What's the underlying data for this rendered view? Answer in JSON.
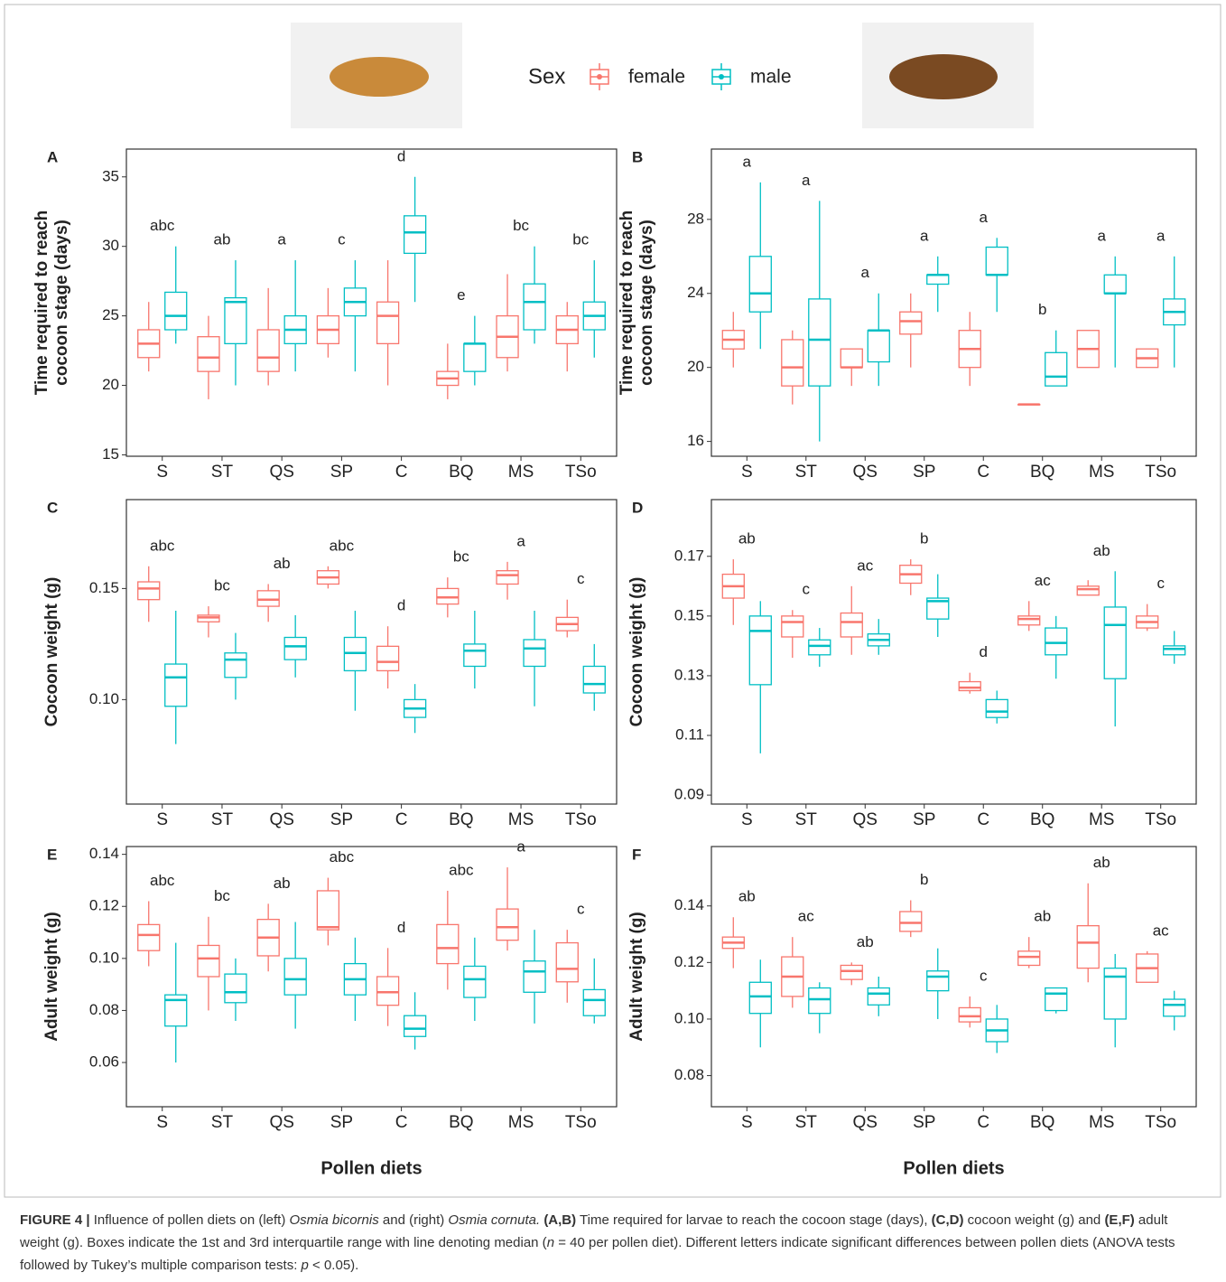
{
  "legend_title": "Sex",
  "chart_data": [
    {
      "type": "box",
      "panel": "A",
      "ylabel": [
        "Time required to reach",
        "cocoon stage (days)"
      ],
      "categories": [
        "S",
        "ST",
        "QS",
        "SP",
        "C",
        "BQ",
        "MS",
        "TSo"
      ],
      "ylim": [
        14.9,
        37.0
      ],
      "yticks": [
        15,
        20,
        25,
        30,
        35
      ],
      "series": [
        {
          "name": "female",
          "color": "#F8766D",
          "values": [
            [
              21,
              22,
              23,
              24,
              26
            ],
            [
              19,
              21,
              22,
              23.5,
              25
            ],
            [
              20,
              21,
              22,
              24,
              27
            ],
            [
              22,
              23,
              24,
              25,
              27
            ],
            [
              20,
              23,
              25,
              26,
              29
            ],
            [
              19,
              20,
              20.5,
              21,
              23
            ],
            [
              21,
              22,
              23.5,
              25,
              28
            ],
            [
              21,
              23,
              24,
              25,
              26
            ]
          ]
        },
        {
          "name": "male",
          "color": "#00BFC4",
          "values": [
            [
              23,
              24,
              25,
              26.7,
              30
            ],
            [
              20,
              23,
              26,
              26.3,
              29
            ],
            [
              21,
              23,
              24,
              25,
              29
            ],
            [
              21,
              25,
              26,
              27,
              29
            ],
            [
              26,
              29.5,
              31,
              32.2,
              35
            ],
            [
              20,
              21,
              23,
              23,
              25
            ],
            [
              23,
              24,
              26,
              27.3,
              30
            ],
            [
              22,
              24,
              25,
              26,
              29
            ]
          ]
        }
      ],
      "letters": [
        "abc",
        "ab",
        "a",
        "c",
        "d",
        "e",
        "bc",
        "bc"
      ]
    },
    {
      "type": "box",
      "panel": "B",
      "ylabel": [
        "Time required to reach",
        "cocoon stage (days)"
      ],
      "categories": [
        "S",
        "ST",
        "QS",
        "SP",
        "C",
        "BQ",
        "MS",
        "TSo"
      ],
      "ylim": [
        15.2,
        31.8
      ],
      "yticks": [
        16,
        20,
        24,
        28
      ],
      "series": [
        {
          "name": "female",
          "color": "#F8766D",
          "values": [
            [
              20,
              21,
              21.5,
              22,
              23
            ],
            [
              18,
              19,
              20,
              21.5,
              22
            ],
            [
              19,
              20,
              20,
              21,
              21
            ],
            [
              20,
              21.8,
              22.5,
              23,
              24
            ],
            [
              19,
              20,
              21,
              22,
              23
            ],
            [
              18,
              18,
              18,
              18,
              18
            ],
            [
              20,
              20,
              21,
              22,
              22
            ],
            [
              20,
              20,
              20.5,
              21,
              21
            ]
          ]
        },
        {
          "name": "male",
          "color": "#00BFC4",
          "values": [
            [
              21,
              23,
              24,
              26,
              30
            ],
            [
              16,
              19,
              21.5,
              23.7,
              29
            ],
            [
              19,
              20.3,
              22,
              22,
              24
            ],
            [
              23,
              24.5,
              25,
              25,
              26
            ],
            [
              23,
              25,
              25,
              26.5,
              27
            ],
            [
              19,
              19,
              19.5,
              20.8,
              22
            ],
            [
              20,
              24,
              24,
              25,
              26
            ],
            [
              20,
              22.3,
              23,
              23.7,
              26
            ]
          ]
        }
      ],
      "letters": [
        "a",
        "a",
        "a",
        "a",
        "a",
        "b",
        "a",
        "a"
      ]
    },
    {
      "type": "box",
      "panel": "C",
      "ylabel": [
        "Cocoon weight (g)"
      ],
      "categories": [
        "S",
        "ST",
        "QS",
        "SP",
        "C",
        "BQ",
        "MS",
        "TSo"
      ],
      "ylim": [
        0.053,
        0.19
      ],
      "yticks": [
        {
          "value": 0.1,
          "label": "0.10"
        },
        0.15
      ],
      "series": [
        {
          "name": "female",
          "color": "#F8766D",
          "values": [
            [
              0.135,
              0.145,
              0.15,
              0.153,
              0.16
            ],
            [
              0.128,
              0.135,
              0.137,
              0.138,
              0.142
            ],
            [
              0.135,
              0.142,
              0.145,
              0.149,
              0.152
            ],
            [
              0.15,
              0.152,
              0.155,
              0.158,
              0.16
            ],
            [
              0.105,
              0.113,
              0.117,
              0.124,
              0.133
            ],
            [
              0.137,
              0.143,
              0.146,
              0.15,
              0.155
            ],
            [
              0.145,
              0.152,
              0.156,
              0.158,
              0.162
            ],
            [
              0.128,
              0.131,
              0.134,
              0.137,
              0.145
            ]
          ]
        },
        {
          "name": "male",
          "color": "#00BFC4",
          "values": [
            [
              0.08,
              0.097,
              0.11,
              0.116,
              0.14
            ],
            [
              0.1,
              0.11,
              0.118,
              0.121,
              0.13
            ],
            [
              0.11,
              0.118,
              0.124,
              0.128,
              0.138
            ],
            [
              0.095,
              0.113,
              0.121,
              0.128,
              0.14
            ],
            [
              0.085,
              0.092,
              0.096,
              0.1,
              0.107
            ],
            [
              0.105,
              0.115,
              0.122,
              0.125,
              0.14
            ],
            [
              0.097,
              0.115,
              0.123,
              0.127,
              0.14
            ],
            [
              0.095,
              0.103,
              0.107,
              0.115,
              0.125
            ]
          ]
        }
      ],
      "letters": [
        "abc",
        "bc",
        "ab",
        "abc",
        "d",
        "bc",
        "a",
        "c"
      ]
    },
    {
      "type": "box",
      "panel": "D",
      "ylabel": [
        "Cocoon weight (g)"
      ],
      "categories": [
        "S",
        "ST",
        "QS",
        "SP",
        "C",
        "BQ",
        "MS",
        "TSo"
      ],
      "ylim": [
        0.087,
        0.189
      ],
      "yticks": [
        0.09,
        0.11,
        0.13,
        0.15,
        0.17
      ],
      "series": [
        {
          "name": "female",
          "color": "#F8766D",
          "values": [
            [
              0.147,
              0.156,
              0.16,
              0.164,
              0.169
            ],
            [
              0.136,
              0.143,
              0.148,
              0.15,
              0.152
            ],
            [
              0.137,
              0.143,
              0.148,
              0.151,
              0.16
            ],
            [
              0.157,
              0.161,
              0.164,
              0.167,
              0.169
            ],
            [
              0.124,
              0.125,
              0.126,
              0.128,
              0.131
            ],
            [
              0.145,
              0.147,
              0.149,
              0.15,
              0.155
            ],
            [
              0.157,
              0.157,
              0.159,
              0.16,
              0.162
            ],
            [
              0.145,
              0.146,
              0.148,
              0.15,
              0.154
            ]
          ]
        },
        {
          "name": "male",
          "color": "#00BFC4",
          "values": [
            [
              0.104,
              0.127,
              0.145,
              0.15,
              0.155
            ],
            [
              0.133,
              0.137,
              0.14,
              0.142,
              0.146
            ],
            [
              0.137,
              0.14,
              0.142,
              0.144,
              0.149
            ],
            [
              0.143,
              0.149,
              0.155,
              0.156,
              0.164
            ],
            [
              0.114,
              0.116,
              0.118,
              0.122,
              0.125
            ],
            [
              0.129,
              0.137,
              0.141,
              0.146,
              0.15
            ],
            [
              0.113,
              0.129,
              0.147,
              0.153,
              0.165
            ],
            [
              0.134,
              0.137,
              0.139,
              0.14,
              0.145
            ]
          ]
        }
      ],
      "letters": [
        "ab",
        "c",
        "ac",
        "b",
        "d",
        "ac",
        "ab",
        "c"
      ]
    },
    {
      "type": "box",
      "panel": "E",
      "ylabel": [
        "Adult weight (g)"
      ],
      "xlabel": "Pollen diets",
      "categories": [
        "S",
        "ST",
        "QS",
        "SP",
        "C",
        "BQ",
        "MS",
        "TSo"
      ],
      "ylim": [
        0.043,
        0.143
      ],
      "yticks": [
        0.06,
        0.08,
        {
          "value": 0.1,
          "label": "0.10"
        },
        0.12,
        0.14
      ],
      "series": [
        {
          "name": "female",
          "color": "#F8766D",
          "values": [
            [
              0.097,
              0.103,
              0.109,
              0.113,
              0.122
            ],
            [
              0.08,
              0.093,
              0.1,
              0.105,
              0.116
            ],
            [
              0.095,
              0.101,
              0.108,
              0.115,
              0.121
            ],
            [
              0.105,
              0.111,
              0.112,
              0.126,
              0.131
            ],
            [
              0.074,
              0.082,
              0.087,
              0.093,
              0.104
            ],
            [
              0.088,
              0.098,
              0.104,
              0.113,
              0.126
            ],
            [
              0.103,
              0.107,
              0.112,
              0.119,
              0.135
            ],
            [
              0.083,
              0.091,
              0.096,
              0.106,
              0.111
            ]
          ]
        },
        {
          "name": "male",
          "color": "#00BFC4",
          "values": [
            [
              0.06,
              0.074,
              0.084,
              0.086,
              0.106
            ],
            [
              0.076,
              0.083,
              0.087,
              0.094,
              0.1
            ],
            [
              0.073,
              0.086,
              0.092,
              0.1,
              0.114
            ],
            [
              0.076,
              0.086,
              0.092,
              0.098,
              0.108
            ],
            [
              0.065,
              0.07,
              0.073,
              0.078,
              0.087
            ],
            [
              0.076,
              0.085,
              0.092,
              0.097,
              0.108
            ],
            [
              0.075,
              0.087,
              0.095,
              0.099,
              0.111
            ],
            [
              0.075,
              0.078,
              0.084,
              0.088,
              0.1
            ]
          ]
        }
      ],
      "letters": [
        "abc",
        "bc",
        "ab",
        "abc",
        "d",
        "abc",
        "a",
        "c"
      ]
    },
    {
      "type": "box",
      "panel": "F",
      "ylabel": [
        "Adult weight (g)"
      ],
      "xlabel": "Pollen diets",
      "categories": [
        "S",
        "ST",
        "QS",
        "SP",
        "C",
        "BQ",
        "MS",
        "TSo"
      ],
      "ylim": [
        0.069,
        0.161
      ],
      "yticks": [
        0.08,
        {
          "value": 0.1,
          "label": "0.10"
        },
        0.12,
        0.14
      ],
      "series": [
        {
          "name": "female",
          "color": "#F8766D",
          "values": [
            [
              0.118,
              0.125,
              0.127,
              0.129,
              0.136
            ],
            [
              0.104,
              0.108,
              0.115,
              0.122,
              0.129
            ],
            [
              0.112,
              0.114,
              0.117,
              0.119,
              0.12
            ],
            [
              0.129,
              0.131,
              0.134,
              0.138,
              0.142
            ],
            [
              0.097,
              0.099,
              0.101,
              0.104,
              0.108
            ],
            [
              0.118,
              0.119,
              0.122,
              0.124,
              0.129
            ],
            [
              0.113,
              0.118,
              0.127,
              0.133,
              0.148
            ],
            [
              0.113,
              0.113,
              0.118,
              0.123,
              0.124
            ]
          ]
        },
        {
          "name": "male",
          "color": "#00BFC4",
          "values": [
            [
              0.09,
              0.102,
              0.108,
              0.113,
              0.121
            ],
            [
              0.095,
              0.102,
              0.107,
              0.111,
              0.113
            ],
            [
              0.101,
              0.105,
              0.109,
              0.111,
              0.115
            ],
            [
              0.1,
              0.11,
              0.115,
              0.117,
              0.125
            ],
            [
              0.088,
              0.092,
              0.096,
              0.1,
              0.105
            ],
            [
              0.102,
              0.103,
              0.109,
              0.111,
              0.111
            ],
            [
              0.09,
              0.1,
              0.115,
              0.118,
              0.123
            ],
            [
              0.096,
              0.101,
              0.105,
              0.107,
              0.11
            ]
          ]
        }
      ],
      "letters": [
        "ab",
        "ac",
        "ab",
        "b",
        "c",
        "ab",
        "ab",
        "ac"
      ]
    }
  ],
  "caption": [
    {
      "text": "FIGURE 4 |",
      "style": "b"
    },
    {
      "text": " Influence of pollen diets on (left) ",
      "style": ""
    },
    {
      "text": "Osmia bicornis",
      "style": "i"
    },
    {
      "text": " and (right) ",
      "style": ""
    },
    {
      "text": "Osmia cornuta.",
      "style": "i"
    },
    {
      "text": " ",
      "style": ""
    },
    {
      "text": "(A,B)",
      "style": "b"
    },
    {
      "text": " Time required for larvae to reach the cocoon stage (days), ",
      "style": ""
    },
    {
      "text": "(C,D)",
      "style": "b"
    },
    {
      "text": " cocoon weight (g) and ",
      "style": ""
    },
    {
      "text": "(E,F)",
      "style": "b"
    },
    {
      "text": " adult weight (g). Boxes indicate the 1st and 3rd interquartile range with line denoting median (",
      "style": ""
    },
    {
      "text": "n",
      "style": "i"
    },
    {
      "text": " = 40 per pollen diet). Different letters indicate significant differences between pollen diets (ANOVA tests followed by Tukey’s multiple comparison tests: ",
      "style": ""
    },
    {
      "text": "p",
      "style": "i"
    },
    {
      "text": " < 0.05).",
      "style": ""
    }
  ]
}
